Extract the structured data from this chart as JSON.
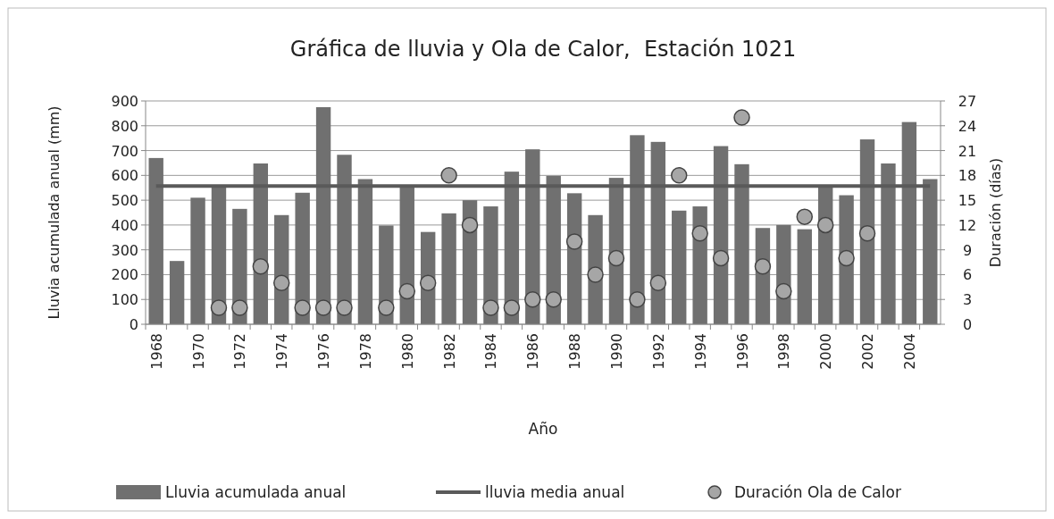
{
  "chart_data": {
    "type": "bar",
    "title": "Gráfica de lluvia y Ola de Calor,  Estación 1021",
    "xlabel": "Año",
    "ylabel": "Lluvia acumulada anual (mm)",
    "y2label": "Duración (días)",
    "categories": [
      "1968",
      null,
      "1970",
      null,
      "1972",
      null,
      "1974",
      null,
      "1976",
      null,
      "1978",
      null,
      "1980",
      null,
      "1982",
      null,
      "1984",
      null,
      "1986",
      null,
      "1988",
      null,
      "1990",
      null,
      "1992",
      null,
      "1994",
      null,
      "1996",
      null,
      "1998",
      null,
      "2000",
      null,
      "2002",
      null,
      "2004",
      null
    ],
    "series": [
      {
        "name": "Lluvia acumulada anual",
        "color": "#707070",
        "values": [
          670,
          255,
          510,
          560,
          465,
          648,
          440,
          530,
          875,
          683,
          585,
          398,
          560,
          372,
          447,
          500,
          475,
          615,
          705,
          598,
          528,
          440,
          590,
          762,
          735,
          458,
          475,
          718,
          645,
          388,
          400,
          383,
          560,
          520,
          745,
          648,
          815,
          585
        ]
      },
      {
        "name": "lluvia media anual",
        "type": "line",
        "color": "#5a5a5a",
        "values": [
          557,
          557,
          557,
          557,
          557,
          557,
          557,
          557,
          557,
          557,
          557,
          557,
          557,
          557,
          557,
          557,
          557,
          557,
          557,
          557,
          557,
          557,
          557,
          557,
          557,
          557,
          557,
          557,
          557,
          557,
          557,
          557,
          557,
          557,
          557,
          557,
          557,
          557
        ]
      },
      {
        "name": "Duración Ola de Calor",
        "type": "scatter",
        "axis": "y2",
        "marker": "circle",
        "color": "#a6a6a6",
        "values": [
          null,
          null,
          null,
          2,
          2,
          7,
          5,
          2,
          2,
          2,
          null,
          2,
          4,
          5,
          18,
          12,
          2,
          2,
          3,
          3,
          10,
          6,
          8,
          3,
          5,
          18,
          11,
          8,
          25,
          7,
          4,
          13,
          12,
          8,
          11,
          null,
          null,
          null
        ]
      }
    ],
    "ylim": [
      0,
      900
    ],
    "yticks": [
      0,
      100,
      200,
      300,
      400,
      500,
      600,
      700,
      800,
      900
    ],
    "y2lim": [
      0,
      27
    ],
    "y2ticks": [
      0,
      3,
      6,
      9,
      12,
      15,
      18,
      21,
      24,
      27
    ],
    "grid": "y",
    "legend": "bottom"
  }
}
